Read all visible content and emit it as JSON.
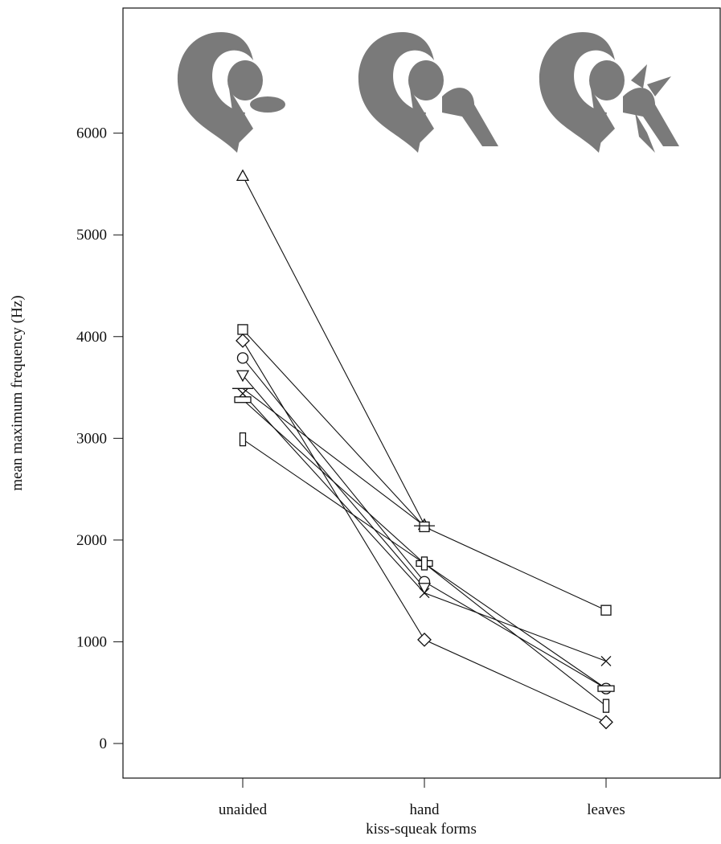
{
  "chart_data": {
    "type": "line",
    "x_label": "kiss-squeak forms",
    "y_label": "mean maximum frequency (Hz)",
    "categories": [
      "unaided",
      "hand",
      "leaves"
    ],
    "ylim": [
      -340,
      7230
    ],
    "yticks": [
      0,
      1000,
      2000,
      3000,
      4000,
      5000,
      6000
    ],
    "color": "#111111",
    "series": [
      {
        "marker": "triangle",
        "values": [
          5580,
          2150,
          null
        ]
      },
      {
        "marker": "square",
        "values": [
          4070,
          2130,
          1310
        ]
      },
      {
        "marker": "diamond",
        "values": [
          3960,
          1020,
          210
        ]
      },
      {
        "marker": "circle",
        "values": [
          3790,
          1590,
          540
        ]
      },
      {
        "marker": "triangle-down",
        "values": [
          3620,
          1530,
          null
        ]
      },
      {
        "marker": "hline",
        "values": [
          3490,
          2140,
          null
        ]
      },
      {
        "marker": "x",
        "values": [
          3440,
          1480,
          810
        ]
      },
      {
        "marker": "hrect",
        "values": [
          3380,
          1770,
          540
        ]
      },
      {
        "marker": "vrect",
        "values": [
          2990,
          1770,
          370
        ]
      }
    ]
  }
}
